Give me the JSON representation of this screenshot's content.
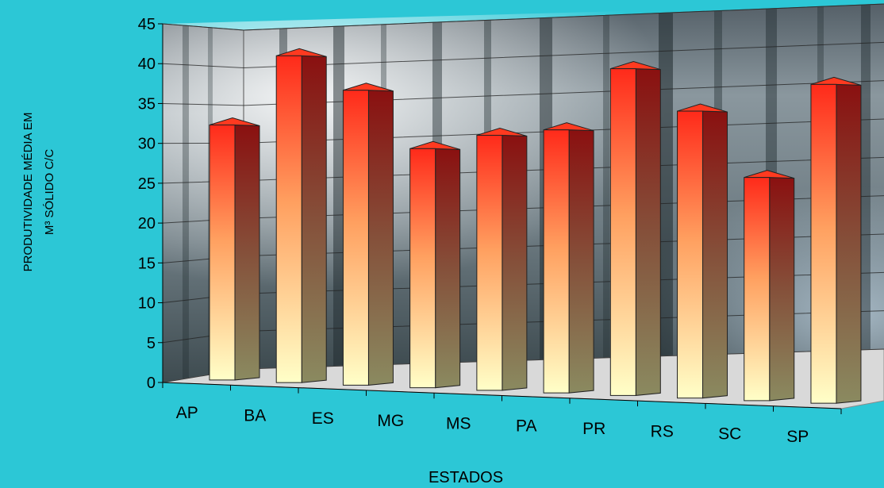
{
  "chart_data": {
    "type": "bar",
    "style": "3d-bar",
    "title": "",
    "xlabel": "ESTADOS",
    "ylabel_lines": [
      "PRODUTIVIDADE MÉDIA   EM",
      "M³ SÓLIDO C/C"
    ],
    "categories": [
      "AP",
      "BA",
      "ES",
      "MG",
      "MS",
      "PA",
      "PR",
      "RS",
      "SC",
      "SP"
    ],
    "values": [
      32,
      41,
      37,
      30,
      32,
      33,
      41,
      36,
      28,
      40
    ],
    "ylim": [
      0,
      45
    ],
    "yticks": [
      0,
      5,
      10,
      15,
      20,
      25,
      30,
      35,
      40,
      45
    ],
    "grid": true,
    "legend": "none",
    "colors": {
      "background": "#2cc7d6",
      "bar_top": "#ff2a1a",
      "bar_bottom": "#ffffc8",
      "bar_side_top": "#8a1010",
      "bar_side_bottom": "#8a8a60"
    }
  }
}
